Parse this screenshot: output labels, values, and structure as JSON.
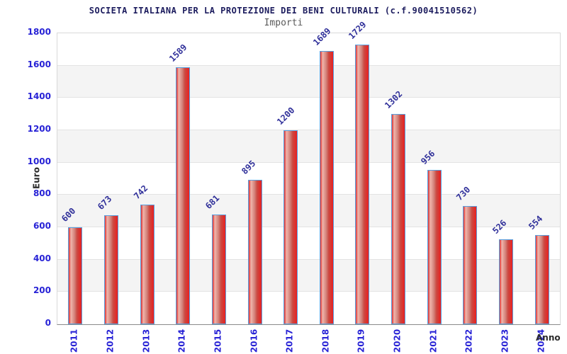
{
  "header": {
    "title": "SOCIETA ITALIANA PER LA PROTEZIONE DEI BENI CULTURALI (c.f.90041510562)",
    "subtitle": "Importi"
  },
  "chart_data": {
    "type": "bar",
    "title": "SOCIETA ITALIANA PER LA PROTEZIONE DEI BENI CULTURALI (c.f.90041510562)",
    "subtitle": "Importi",
    "xlabel": "Anno",
    "ylabel": "Euro",
    "categories": [
      "2011",
      "2012",
      "2013",
      "2014",
      "2015",
      "2016",
      "2017",
      "2018",
      "2019",
      "2020",
      "2021",
      "2022",
      "2023",
      "2024"
    ],
    "values": [
      600,
      673,
      742,
      1589,
      681,
      895,
      1200,
      1689,
      1729,
      1302,
      956,
      730,
      526,
      554
    ],
    "ylim": [
      0,
      1800
    ],
    "ytick_step": 200,
    "yticks": [
      0,
      200,
      400,
      600,
      800,
      1000,
      1200,
      1400,
      1600,
      1800
    ],
    "grid": "horizontal gridlines with alternating shaded bands",
    "legend": "none",
    "colors": {
      "bar_fill_main": "#e02020",
      "bar_fill_highlight": "#f0b4aa",
      "bar_border": "#58a0e0",
      "band_shade": "#f4f4f4",
      "gridline": "#e3e3e3",
      "axis_tick_text": "#2823d6",
      "value_label_text": "#30309a",
      "title_text": "#1c1c5e",
      "subtitle_text": "#5a5a5a",
      "axis_title_text": "#2b2b2b",
      "plot_border": "#d9d9d9"
    }
  }
}
